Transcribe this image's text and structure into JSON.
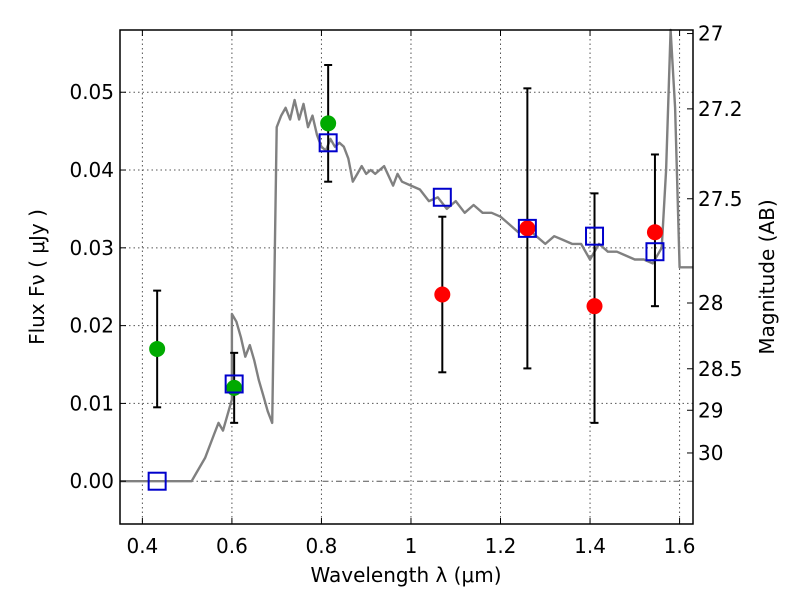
{
  "chart_data": {
    "type": "scatter",
    "xlabel": "Wavelength  λ (μm)",
    "ylabel": "Flux  Fν  ( μJy )",
    "ylabel_right": "Magnitude (AB)",
    "xlim": [
      0.35,
      1.63
    ],
    "ylim": [
      -0.0055,
      0.058
    ],
    "grid": true,
    "x_ticks": [
      {
        "value": 0.4,
        "label": "0.4"
      },
      {
        "value": 0.6,
        "label": "0.6"
      },
      {
        "value": 0.8,
        "label": "0.8"
      },
      {
        "value": 1.0,
        "label": "1"
      },
      {
        "value": 1.2,
        "label": "1.2"
      },
      {
        "value": 1.4,
        "label": "1.4"
      },
      {
        "value": 1.6,
        "label": "1.6"
      }
    ],
    "y_ticks": [
      {
        "value": 0.0,
        "label": "0.00"
      },
      {
        "value": 0.01,
        "label": "0.01"
      },
      {
        "value": 0.02,
        "label": "0.02"
      },
      {
        "value": 0.03,
        "label": "0.03"
      },
      {
        "value": 0.04,
        "label": "0.04"
      },
      {
        "value": 0.05,
        "label": "0.05"
      }
    ],
    "mag_ticks": [
      {
        "value": 27,
        "label": "27"
      },
      {
        "value": 27.2,
        "label": "27.2"
      },
      {
        "value": 27.5,
        "label": "27.5"
      },
      {
        "value": 28,
        "label": "28"
      },
      {
        "value": 28.5,
        "label": "28.5"
      },
      {
        "value": 29,
        "label": "29"
      },
      {
        "value": 30,
        "label": "30"
      }
    ],
    "colors": {
      "model": "#808080",
      "green": "#00aa00",
      "red": "#ff0000",
      "blue": "#0000cc",
      "errorbar": "#000000",
      "grid": "#555555",
      "zero_line": "#555555"
    },
    "series": [
      {
        "name": "model SED",
        "kind": "line",
        "x": [
          0.35,
          0.51,
          0.52,
          0.54,
          0.56,
          0.57,
          0.58,
          0.6,
          0.6,
          0.61,
          0.62,
          0.63,
          0.64,
          0.65,
          0.66,
          0.67,
          0.68,
          0.69,
          0.7,
          0.71,
          0.72,
          0.73,
          0.74,
          0.75,
          0.76,
          0.77,
          0.78,
          0.79,
          0.8,
          0.81,
          0.82,
          0.83,
          0.84,
          0.85,
          0.86,
          0.87,
          0.88,
          0.89,
          0.9,
          0.91,
          0.92,
          0.94,
          0.96,
          0.97,
          0.98,
          1.0,
          1.02,
          1.04,
          1.06,
          1.08,
          1.1,
          1.12,
          1.14,
          1.16,
          1.18,
          1.2,
          1.22,
          1.24,
          1.26,
          1.28,
          1.3,
          1.32,
          1.34,
          1.36,
          1.38,
          1.4,
          1.42,
          1.44,
          1.46,
          1.48,
          1.5,
          1.52,
          1.54,
          1.56,
          1.57,
          1.58,
          1.59,
          1.6,
          1.61,
          1.63
        ],
        "y": [
          0.0,
          0.0,
          0.001,
          0.003,
          0.006,
          0.0075,
          0.0065,
          0.0105,
          0.0215,
          0.0205,
          0.0185,
          0.016,
          0.0175,
          0.0155,
          0.013,
          0.011,
          0.009,
          0.0075,
          0.0455,
          0.047,
          0.048,
          0.0465,
          0.049,
          0.0465,
          0.0485,
          0.0455,
          0.047,
          0.0445,
          0.043,
          0.0425,
          0.044,
          0.043,
          0.0435,
          0.043,
          0.0415,
          0.0385,
          0.0395,
          0.0405,
          0.0395,
          0.04,
          0.0395,
          0.0405,
          0.038,
          0.0395,
          0.0385,
          0.038,
          0.0375,
          0.036,
          0.0365,
          0.035,
          0.036,
          0.0345,
          0.0355,
          0.0345,
          0.0345,
          0.034,
          0.033,
          0.032,
          0.0325,
          0.0315,
          0.0305,
          0.0315,
          0.031,
          0.0305,
          0.0305,
          0.0285,
          0.0305,
          0.0295,
          0.0295,
          0.029,
          0.0285,
          0.0285,
          0.028,
          0.03,
          0.04,
          0.058,
          0.048,
          0.0275,
          0.0275,
          0.0275
        ]
      },
      {
        "name": "green detections",
        "kind": "points",
        "x": [
          0.433,
          0.605,
          0.815
        ],
        "y": [
          0.017,
          0.012,
          0.046
        ],
        "yerr_low": [
          0.0095,
          0.0075,
          0.0385
        ],
        "yerr_high": [
          0.0245,
          0.0165,
          0.0535
        ]
      },
      {
        "name": "red detections",
        "kind": "points",
        "x": [
          1.07,
          1.26,
          1.41,
          1.545
        ],
        "y": [
          0.024,
          0.0325,
          0.0225,
          0.032
        ],
        "yerr_low": [
          0.014,
          0.0145,
          0.0075,
          0.0225
        ],
        "yerr_high": [
          0.034,
          0.0505,
          0.037,
          0.042
        ]
      },
      {
        "name": "model photometry",
        "kind": "squares",
        "x": [
          0.433,
          0.605,
          0.815,
          1.07,
          1.26,
          1.41,
          1.545
        ],
        "y": [
          0.0,
          0.0125,
          0.0435,
          0.0365,
          0.0325,
          0.0315,
          0.0295
        ]
      }
    ]
  }
}
